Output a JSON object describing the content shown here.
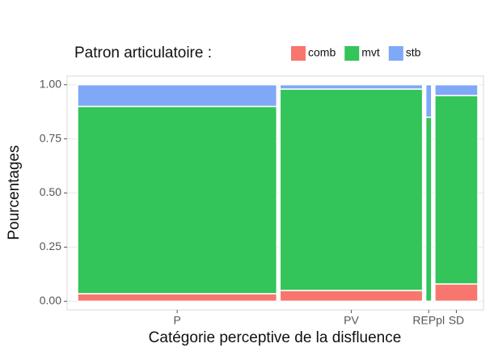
{
  "chart_data": {
    "type": "mosaic",
    "legend_title": "Patron articulatoire :",
    "x_label": "Catégorie perceptive de la disfluence",
    "y_label": "Pourcentages",
    "categories": [
      "P",
      "PV",
      "REPpl",
      "SD"
    ],
    "widths": [
      0.51,
      0.365,
      0.015,
      0.11
    ],
    "series": [
      {
        "name": "comb",
        "color": "#F8766D",
        "values": [
          0.035,
          0.05,
          0,
          0.08
        ]
      },
      {
        "name": "mvt",
        "color": "#33C45A",
        "values": [
          0.865,
          0.93,
          0.85,
          0.87
        ]
      },
      {
        "name": "stb",
        "color": "#7FA8F7",
        "values": [
          0.1,
          0.02,
          0.15,
          0.05
        ]
      }
    ],
    "ylim": [
      -0.04,
      1.04
    ],
    "yticks": [
      {
        "value": 0,
        "label": "0.00"
      },
      {
        "value": 0.25,
        "label": "0.25"
      },
      {
        "value": 0.5,
        "label": "0.50"
      },
      {
        "value": 0.75,
        "label": "0.75"
      },
      {
        "value": 1,
        "label": "1.00"
      }
    ],
    "grid": true,
    "legend_position": "top"
  }
}
